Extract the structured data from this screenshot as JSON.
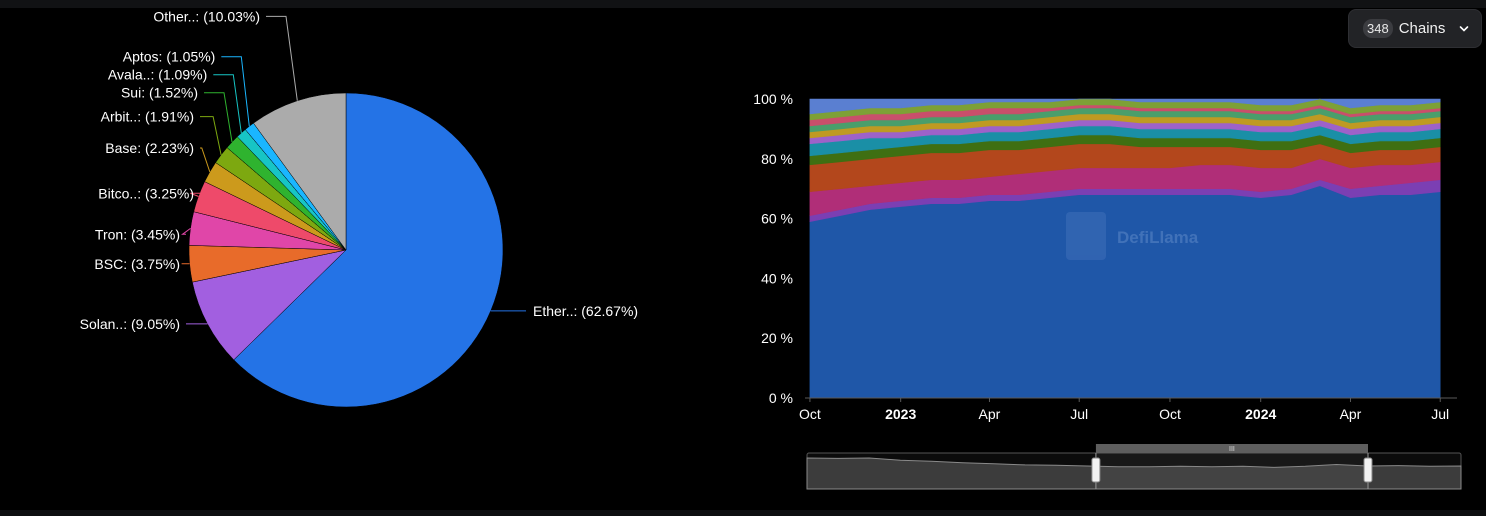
{
  "selector": {
    "count": "348",
    "label": "Chains"
  },
  "watermark": "DefiLlama",
  "colors": {
    "background": "#000000",
    "axis_text": "#ffffff",
    "grid": "#3a3a3a"
  },
  "chart_data": [
    {
      "type": "pie",
      "labels": [
        "Ether..: (62.67%)",
        "Solan..: (9.05%)",
        "BSC: (3.75%)",
        "Tron: (3.45%)",
        "Bitco..: (3.25%)",
        "Base: (2.23%)",
        "Arbit..: (1.91%)",
        "Sui: (1.52%)",
        "Avala..: (1.09%)",
        "Aptos: (1.05%)",
        "Other..: (10.03%)"
      ],
      "values": [
        62.67,
        9.05,
        3.75,
        3.45,
        3.25,
        2.23,
        1.91,
        1.52,
        1.09,
        1.05,
        10.03
      ],
      "colors": [
        "#2473e6",
        "#a25fe0",
        "#e86b2a",
        "#e046a8",
        "#ee4a6a",
        "#cc9a1c",
        "#7da810",
        "#2fb32f",
        "#17c5c5",
        "#1ab6ff",
        "#ababab"
      ]
    },
    {
      "type": "area",
      "stacked": true,
      "normalized": true,
      "x_ticks": [
        {
          "label": "Oct",
          "bold": false
        },
        {
          "label": "2023",
          "bold": true
        },
        {
          "label": "Apr",
          "bold": false
        },
        {
          "label": "Jul",
          "bold": false
        },
        {
          "label": "Oct",
          "bold": false
        },
        {
          "label": "2024",
          "bold": true
        },
        {
          "label": "Apr",
          "bold": false
        },
        {
          "label": "Jul",
          "bold": false
        }
      ],
      "y_ticks": [
        "0 %",
        "20 %",
        "40 %",
        "60 %",
        "80 %",
        "100 %"
      ],
      "ylim": [
        0,
        100
      ],
      "x": [
        "2022-10-01",
        "2022-11-01",
        "2022-12-01",
        "2023-01-01",
        "2023-02-01",
        "2023-03-01",
        "2023-04-01",
        "2023-05-01",
        "2023-06-01",
        "2023-07-01",
        "2023-08-01",
        "2023-09-01",
        "2023-10-01",
        "2023-11-01",
        "2023-12-01",
        "2024-01-01",
        "2024-02-01",
        "2024-03-01",
        "2024-04-01",
        "2024-05-01",
        "2024-06-01",
        "2024-07-01"
      ],
      "series": [
        {
          "color": "#1f57a8",
          "values": [
            59,
            61,
            63,
            64,
            65,
            65,
            66,
            66,
            67,
            68,
            68,
            68,
            68,
            68,
            68,
            67,
            68,
            71,
            67,
            68,
            68,
            69
          ]
        },
        {
          "color": "#7b3fb3",
          "values": [
            2,
            2,
            2,
            2,
            2,
            2,
            2,
            2,
            2,
            2,
            2,
            2,
            2,
            2,
            2,
            2,
            2,
            2,
            3,
            3,
            4,
            4
          ]
        },
        {
          "color": "#b02e78",
          "values": [
            8,
            7,
            6,
            6,
            6,
            6,
            6,
            7,
            7,
            7,
            7,
            7,
            7,
            8,
            8,
            8,
            7,
            7,
            7,
            7,
            6,
            6
          ]
        },
        {
          "color": "#b3471c",
          "values": [
            9,
            9,
            9,
            9,
            9,
            9,
            9,
            8,
            8,
            8,
            8,
            7,
            7,
            6,
            6,
            6,
            6,
            5,
            5,
            5,
            5,
            5
          ]
        },
        {
          "color": "#3f6f12",
          "values": [
            3,
            3,
            3,
            3,
            3,
            3,
            3,
            3,
            3,
            3,
            3,
            3,
            3,
            3,
            3,
            3,
            3,
            3,
            3,
            3,
            3,
            3
          ]
        },
        {
          "color": "#1a8fa6",
          "values": [
            4,
            4,
            4,
            3,
            3,
            3,
            3,
            3,
            3,
            3,
            3,
            3,
            3,
            3,
            3,
            3,
            3,
            3,
            3,
            3,
            3,
            3
          ]
        },
        {
          "color": "#9d62c9",
          "values": [
            2,
            2,
            2,
            2,
            2,
            2,
            2,
            2,
            2,
            2,
            2,
            2,
            2,
            2,
            2,
            2,
            2,
            2,
            2,
            2,
            2,
            2
          ]
        },
        {
          "color": "#bf9a22",
          "values": [
            2,
            2,
            2,
            2,
            2,
            2,
            2,
            2,
            2,
            2,
            2,
            2,
            2,
            2,
            2,
            2,
            2,
            2,
            2,
            2,
            2,
            2
          ]
        },
        {
          "color": "#4a9e6b",
          "values": [
            2,
            2,
            2,
            2,
            2,
            2,
            2,
            2,
            2,
            2,
            2,
            2,
            2,
            2,
            2,
            2,
            2,
            2,
            2,
            2,
            2,
            2
          ]
        },
        {
          "color": "#c94f6b",
          "values": [
            2,
            2,
            2,
            2,
            2,
            2,
            2,
            2,
            1,
            1,
            1,
            1,
            1,
            1,
            1,
            1,
            1,
            1,
            1,
            1,
            1,
            1
          ]
        },
        {
          "color": "#7da036",
          "values": [
            2,
            2,
            2,
            2,
            2,
            2,
            2,
            2,
            2,
            2,
            2,
            2,
            2,
            2,
            2,
            2,
            2,
            2,
            2,
            2,
            2,
            2
          ]
        },
        {
          "color": "#5a7fd1",
          "values": [
            5,
            4,
            3,
            3,
            2,
            2,
            1,
            1,
            1,
            0,
            0,
            1,
            1,
            1,
            1,
            2,
            2,
            0,
            3,
            2,
            2,
            1
          ]
        }
      ]
    }
  ],
  "navigator": {
    "handle_grip": "III",
    "range": [
      "2023-07-15",
      "2024-04-15"
    ],
    "series": [
      86,
      85,
      86,
      80,
      77,
      73,
      70,
      67,
      66,
      64,
      62,
      62,
      63,
      62,
      63,
      60,
      63,
      68,
      64,
      65,
      63,
      64
    ]
  }
}
